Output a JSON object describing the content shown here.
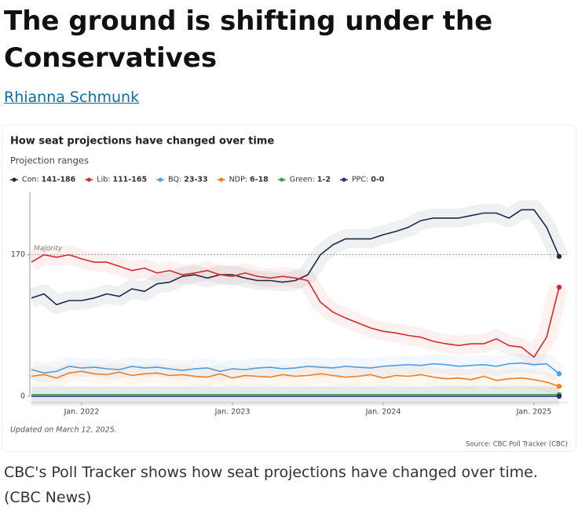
{
  "headline": "The ground is shifting under the Conservatives",
  "author": "Rhianna Schmunk",
  "caption": "CBC's Poll Tracker shows how seat projections have changed over time. (CBC News)",
  "chart_data": {
    "type": "line",
    "title": "How seat projections have changed over time",
    "subtitle": "Projection ranges",
    "updated": "Updated on March 12, 2025.",
    "source": "Source: CBC Poll Tracker (CBC)",
    "majority": {
      "label": "Majority",
      "value": 170
    },
    "x": [
      "2021-09",
      "2021-10",
      "2021-11",
      "2021-12",
      "2022-01",
      "2022-02",
      "2022-03",
      "2022-04",
      "2022-05",
      "2022-06",
      "2022-07",
      "2022-08",
      "2022-09",
      "2022-10",
      "2022-11",
      "2022-12",
      "2023-01",
      "2023-02",
      "2023-03",
      "2023-04",
      "2023-05",
      "2023-06",
      "2023-07",
      "2023-08",
      "2023-09",
      "2023-10",
      "2023-11",
      "2023-12",
      "2024-01",
      "2024-02",
      "2024-03",
      "2024-04",
      "2024-05",
      "2024-06",
      "2024-07",
      "2024-08",
      "2024-09",
      "2024-10",
      "2024-11",
      "2024-12",
      "2025-01",
      "2025-02",
      "2025-03"
    ],
    "xlim": [
      "2021-09",
      "2025-03"
    ],
    "xticks": [
      {
        "value": "2022-01",
        "label": "Jan. 2022"
      },
      {
        "value": "2023-01",
        "label": "Jan. 2023"
      },
      {
        "value": "2024-01",
        "label": "Jan. 2024"
      },
      {
        "value": "2025-01",
        "label": "Jan. 2025"
      }
    ],
    "ylim": [
      0,
      245
    ],
    "yticks": [
      0,
      170
    ],
    "series": [
      {
        "name": "Con:",
        "range": "141-186",
        "color": "#1b2a47",
        "values": [
          118,
          123,
          110,
          115,
          115,
          118,
          123,
          120,
          129,
          126,
          135,
          137,
          144,
          146,
          142,
          146,
          146,
          142,
          139,
          139,
          137,
          139,
          146,
          170,
          182,
          189,
          189,
          189,
          194,
          198,
          203,
          211,
          214,
          214,
          214,
          217,
          220,
          220,
          214,
          224,
          224,
          203,
          168
        ]
      },
      {
        "name": "Lib:",
        "range": "111-165",
        "color": "#d62b2b",
        "values": [
          161,
          170,
          167,
          170,
          165,
          161,
          161,
          156,
          151,
          154,
          148,
          151,
          146,
          148,
          151,
          146,
          144,
          148,
          144,
          142,
          144,
          142,
          139,
          113,
          101,
          94,
          88,
          82,
          78,
          76,
          73,
          71,
          66,
          63,
          61,
          63,
          63,
          69,
          61,
          59,
          47,
          71,
          131
        ]
      },
      {
        "name": "BQ:",
        "range": "23-33",
        "color": "#4a9fe8",
        "values": [
          32,
          28,
          30,
          36,
          34,
          35,
          33,
          32,
          36,
          34,
          35,
          33,
          31,
          33,
          34,
          30,
          33,
          32,
          34,
          35,
          33,
          34,
          36,
          35,
          34,
          36,
          35,
          34,
          36,
          37,
          38,
          37,
          39,
          38,
          36,
          37,
          38,
          36,
          39,
          40,
          38,
          39,
          27
        ]
      },
      {
        "name": "NDP:",
        "range": "6-18",
        "color": "#ef7d22",
        "values": [
          24,
          26,
          22,
          28,
          30,
          27,
          26,
          29,
          25,
          27,
          28,
          25,
          26,
          24,
          23,
          27,
          22,
          25,
          24,
          23,
          26,
          24,
          25,
          27,
          25,
          23,
          24,
          26,
          22,
          25,
          24,
          26,
          23,
          21,
          22,
          20,
          24,
          19,
          21,
          22,
          20,
          17,
          12
        ]
      },
      {
        "name": "Green:",
        "range": "1-2",
        "color": "#3aa342",
        "values": [
          2,
          2,
          2,
          2,
          2,
          2,
          2,
          2,
          2,
          2,
          2,
          2,
          2,
          2,
          2,
          2,
          2,
          2,
          2,
          2,
          2,
          2,
          2,
          2,
          2,
          2,
          2,
          2,
          2,
          2,
          2,
          2,
          2,
          2,
          2,
          2,
          2,
          2,
          2,
          2,
          2,
          2,
          2
        ]
      },
      {
        "name": "PPC:",
        "range": "0-0",
        "color": "#2b2f7a",
        "values": [
          0,
          0,
          0,
          0,
          0,
          0,
          0,
          0,
          0,
          0,
          0,
          0,
          0,
          0,
          0,
          0,
          0,
          0,
          0,
          0,
          0,
          0,
          0,
          0,
          0,
          0,
          0,
          0,
          0,
          0,
          0,
          0,
          0,
          0,
          0,
          0,
          0,
          0,
          0,
          0,
          0,
          0,
          0
        ]
      }
    ]
  }
}
